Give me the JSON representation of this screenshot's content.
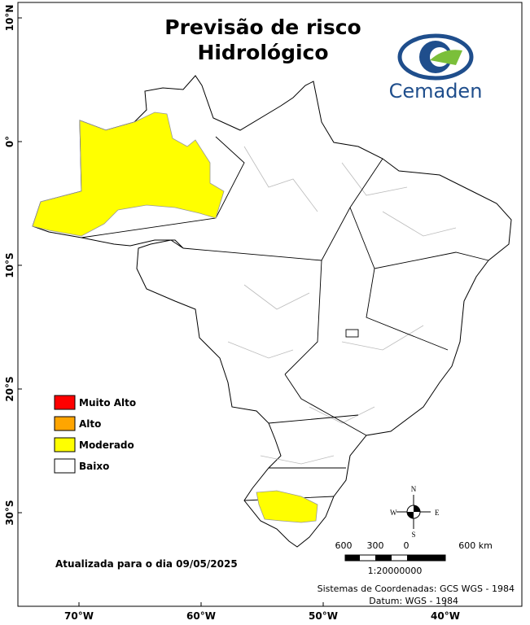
{
  "header": {
    "title_lines": [
      "Previsão de risco",
      "Hidrológico"
    ],
    "logo_text": "Cemaden"
  },
  "legend": {
    "items": [
      {
        "label": "Muito Alto",
        "color": "#ff0000"
      },
      {
        "label": "Alto",
        "color": "#ffa500"
      },
      {
        "label": "Moderado",
        "color": "#ffff00"
      },
      {
        "label": "Baixo",
        "color": "#ffffff"
      }
    ]
  },
  "update_note": "Atualizada para o dia 09/05/2025",
  "compass": {
    "n": "N",
    "e": "E",
    "s": "S",
    "w": "W"
  },
  "scale_bar": {
    "labels": [
      "600",
      "300",
      "0",
      "600 km"
    ],
    "ratio": "1:20000000"
  },
  "footer": {
    "coordinate_system": "Sistemas de Coordenadas: GCS WGS - 1984",
    "datum": "Datum: WGS - 1984"
  },
  "graticule": {
    "lat_labels": [
      "10°N",
      "0°",
      "10°S",
      "20°S",
      "30°S"
    ],
    "lon_labels": [
      "70°W",
      "60°W",
      "50°W",
      "40°W"
    ]
  }
}
